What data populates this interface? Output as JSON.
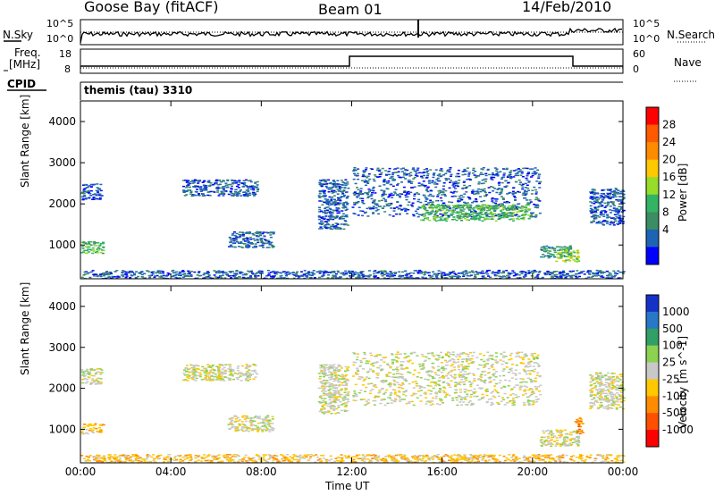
{
  "header": {
    "station": "Goose Bay (fitACF)",
    "beam": "Beam 01",
    "date": "14/Feb/2010"
  },
  "noise_panel": {
    "left_label": "N.Sky",
    "right_label": "N.Search",
    "tick_top": "10^5",
    "tick_bottom": "10^0"
  },
  "freq_panel": {
    "left_label_1": "Freq.",
    "left_label_2": "[MHz]",
    "right_label": "Nave",
    "left_ticks": [
      "18",
      "8"
    ],
    "right_ticks": [
      "60",
      "0"
    ]
  },
  "cpid_panel": {
    "label": "CPID",
    "value": "themis (tau) 3310"
  },
  "power_colorbar": {
    "label": "Power [dB]",
    "ticks": [
      "28",
      "24",
      "20",
      "16",
      "12",
      "8",
      "4"
    ],
    "colors": [
      "#ff0000",
      "#ff5a00",
      "#ff8c00",
      "#ffc800",
      "#96dc28",
      "#32b464",
      "#3c8c64",
      "#1e64b4",
      "#0000ff"
    ]
  },
  "velocity_colorbar": {
    "label": "Velocity [m s^-1]",
    "ticks": [
      "1000",
      "500",
      "100",
      "25",
      "-25",
      "-100",
      "-500",
      "-1000"
    ],
    "colors": [
      "#1432c8",
      "#2878c8",
      "#32a064",
      "#8cd250",
      "#c8c8c8",
      "#ffc800",
      "#ff8c00",
      "#ff5000",
      "#ff0000"
    ]
  },
  "chart_data": [
    {
      "type": "heatmap",
      "name": "power",
      "ylabel": "Slant Range [km]",
      "xlabel": "Time UT",
      "xlim": [
        0,
        24
      ],
      "ylim": [
        180,
        4500
      ],
      "x_ticks": [
        "00:00",
        "04:00",
        "08:00",
        "12:00",
        "16:00",
        "20:00",
        "00:00"
      ],
      "y_ticks": [
        "1000",
        "2000",
        "3000",
        "4000"
      ],
      "regions": [
        {
          "t0": 0.0,
          "t1": 1.0,
          "r0": 800,
          "r1": 1100,
          "level": 3
        },
        {
          "t0": 0.0,
          "t1": 0.9,
          "r0": 2100,
          "r1": 2500,
          "level": 1
        },
        {
          "t0": 4.5,
          "t1": 7.8,
          "r0": 2200,
          "r1": 2600,
          "level": 1
        },
        {
          "t0": 6.5,
          "t1": 8.5,
          "r0": 950,
          "r1": 1350,
          "level": 1
        },
        {
          "t0": 10.5,
          "t1": 11.8,
          "r0": 1400,
          "r1": 2600,
          "level": 1
        },
        {
          "t0": 12.0,
          "t1": 20.3,
          "r0": 1700,
          "r1": 2900,
          "level": 1
        },
        {
          "t0": 15.0,
          "t1": 19.8,
          "r0": 1600,
          "r1": 2000,
          "level": 3
        },
        {
          "t0": 20.3,
          "t1": 21.8,
          "r0": 700,
          "r1": 1000,
          "level": 2
        },
        {
          "t0": 21.0,
          "t1": 22.0,
          "r0": 600,
          "r1": 900,
          "level": 4
        },
        {
          "t0": 22.5,
          "t1": 24.0,
          "r0": 1500,
          "r1": 2400,
          "level": 1
        },
        {
          "t0": 0.0,
          "t1": 24.0,
          "r0": 200,
          "r1": 400,
          "level": 1
        }
      ]
    },
    {
      "type": "heatmap",
      "name": "velocity",
      "ylabel": "Slant Range [km]",
      "xlabel": "Time UT",
      "xlim": [
        0,
        24
      ],
      "ylim": [
        180,
        4500
      ],
      "x_ticks": [
        "00:00",
        "04:00",
        "08:00",
        "12:00",
        "16:00",
        "20:00",
        "00:00"
      ],
      "y_ticks": [
        "1000",
        "2000",
        "3000",
        "4000"
      ],
      "regions": [
        {
          "t0": 0.0,
          "t1": 1.0,
          "r0": 900,
          "r1": 1150,
          "level": 5
        },
        {
          "t0": 0.0,
          "t1": 0.9,
          "r0": 2100,
          "r1": 2500,
          "level": 4
        },
        {
          "t0": 4.5,
          "t1": 7.8,
          "r0": 2200,
          "r1": 2600,
          "level": 4
        },
        {
          "t0": 6.5,
          "t1": 8.5,
          "r0": 950,
          "r1": 1350,
          "level": 4
        },
        {
          "t0": 10.5,
          "t1": 11.8,
          "r0": 1400,
          "r1": 2600,
          "level": 4
        },
        {
          "t0": 12.0,
          "t1": 20.3,
          "r0": 1600,
          "r1": 2900,
          "level": 4
        },
        {
          "t0": 20.3,
          "t1": 22.0,
          "r0": 600,
          "r1": 1000,
          "level": 4
        },
        {
          "t0": 21.8,
          "t1": 22.2,
          "r0": 900,
          "r1": 1300,
          "level": 6
        },
        {
          "t0": 22.5,
          "t1": 24.0,
          "r0": 1500,
          "r1": 2400,
          "level": 4
        },
        {
          "t0": 0.0,
          "t1": 24.0,
          "r0": 200,
          "r1": 400,
          "level": 5
        }
      ]
    }
  ]
}
